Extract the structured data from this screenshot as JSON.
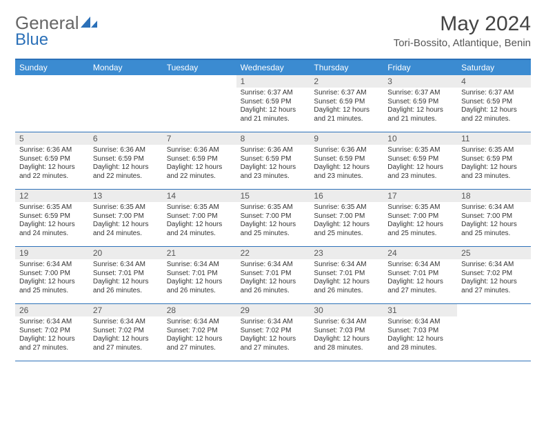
{
  "logo": {
    "text1": "General",
    "text2": "Blue"
  },
  "title": "May 2024",
  "location": "Tori-Bossito, Atlantique, Benin",
  "colors": {
    "header_bg": "#3b8bd1",
    "border": "#2b70b8",
    "daynum_bg": "#ececec",
    "text": "#333333"
  },
  "day_names": [
    "Sunday",
    "Monday",
    "Tuesday",
    "Wednesday",
    "Thursday",
    "Friday",
    "Saturday"
  ],
  "weeks": [
    [
      null,
      null,
      null,
      {
        "n": "1",
        "sr": "6:37 AM",
        "ss": "6:59 PM",
        "dl": "12 hours and 21 minutes."
      },
      {
        "n": "2",
        "sr": "6:37 AM",
        "ss": "6:59 PM",
        "dl": "12 hours and 21 minutes."
      },
      {
        "n": "3",
        "sr": "6:37 AM",
        "ss": "6:59 PM",
        "dl": "12 hours and 21 minutes."
      },
      {
        "n": "4",
        "sr": "6:37 AM",
        "ss": "6:59 PM",
        "dl": "12 hours and 22 minutes."
      }
    ],
    [
      {
        "n": "5",
        "sr": "6:36 AM",
        "ss": "6:59 PM",
        "dl": "12 hours and 22 minutes."
      },
      {
        "n": "6",
        "sr": "6:36 AM",
        "ss": "6:59 PM",
        "dl": "12 hours and 22 minutes."
      },
      {
        "n": "7",
        "sr": "6:36 AM",
        "ss": "6:59 PM",
        "dl": "12 hours and 22 minutes."
      },
      {
        "n": "8",
        "sr": "6:36 AM",
        "ss": "6:59 PM",
        "dl": "12 hours and 23 minutes."
      },
      {
        "n": "9",
        "sr": "6:36 AM",
        "ss": "6:59 PM",
        "dl": "12 hours and 23 minutes."
      },
      {
        "n": "10",
        "sr": "6:35 AM",
        "ss": "6:59 PM",
        "dl": "12 hours and 23 minutes."
      },
      {
        "n": "11",
        "sr": "6:35 AM",
        "ss": "6:59 PM",
        "dl": "12 hours and 23 minutes."
      }
    ],
    [
      {
        "n": "12",
        "sr": "6:35 AM",
        "ss": "6:59 PM",
        "dl": "12 hours and 24 minutes."
      },
      {
        "n": "13",
        "sr": "6:35 AM",
        "ss": "7:00 PM",
        "dl": "12 hours and 24 minutes."
      },
      {
        "n": "14",
        "sr": "6:35 AM",
        "ss": "7:00 PM",
        "dl": "12 hours and 24 minutes."
      },
      {
        "n": "15",
        "sr": "6:35 AM",
        "ss": "7:00 PM",
        "dl": "12 hours and 25 minutes."
      },
      {
        "n": "16",
        "sr": "6:35 AM",
        "ss": "7:00 PM",
        "dl": "12 hours and 25 minutes."
      },
      {
        "n": "17",
        "sr": "6:35 AM",
        "ss": "7:00 PM",
        "dl": "12 hours and 25 minutes."
      },
      {
        "n": "18",
        "sr": "6:34 AM",
        "ss": "7:00 PM",
        "dl": "12 hours and 25 minutes."
      }
    ],
    [
      {
        "n": "19",
        "sr": "6:34 AM",
        "ss": "7:00 PM",
        "dl": "12 hours and 25 minutes."
      },
      {
        "n": "20",
        "sr": "6:34 AM",
        "ss": "7:01 PM",
        "dl": "12 hours and 26 minutes."
      },
      {
        "n": "21",
        "sr": "6:34 AM",
        "ss": "7:01 PM",
        "dl": "12 hours and 26 minutes."
      },
      {
        "n": "22",
        "sr": "6:34 AM",
        "ss": "7:01 PM",
        "dl": "12 hours and 26 minutes."
      },
      {
        "n": "23",
        "sr": "6:34 AM",
        "ss": "7:01 PM",
        "dl": "12 hours and 26 minutes."
      },
      {
        "n": "24",
        "sr": "6:34 AM",
        "ss": "7:01 PM",
        "dl": "12 hours and 27 minutes."
      },
      {
        "n": "25",
        "sr": "6:34 AM",
        "ss": "7:02 PM",
        "dl": "12 hours and 27 minutes."
      }
    ],
    [
      {
        "n": "26",
        "sr": "6:34 AM",
        "ss": "7:02 PM",
        "dl": "12 hours and 27 minutes."
      },
      {
        "n": "27",
        "sr": "6:34 AM",
        "ss": "7:02 PM",
        "dl": "12 hours and 27 minutes."
      },
      {
        "n": "28",
        "sr": "6:34 AM",
        "ss": "7:02 PM",
        "dl": "12 hours and 27 minutes."
      },
      {
        "n": "29",
        "sr": "6:34 AM",
        "ss": "7:02 PM",
        "dl": "12 hours and 27 minutes."
      },
      {
        "n": "30",
        "sr": "6:34 AM",
        "ss": "7:03 PM",
        "dl": "12 hours and 28 minutes."
      },
      {
        "n": "31",
        "sr": "6:34 AM",
        "ss": "7:03 PM",
        "dl": "12 hours and 28 minutes."
      },
      null
    ]
  ],
  "labels": {
    "sunrise": "Sunrise:",
    "sunset": "Sunset:",
    "daylight": "Daylight:"
  }
}
